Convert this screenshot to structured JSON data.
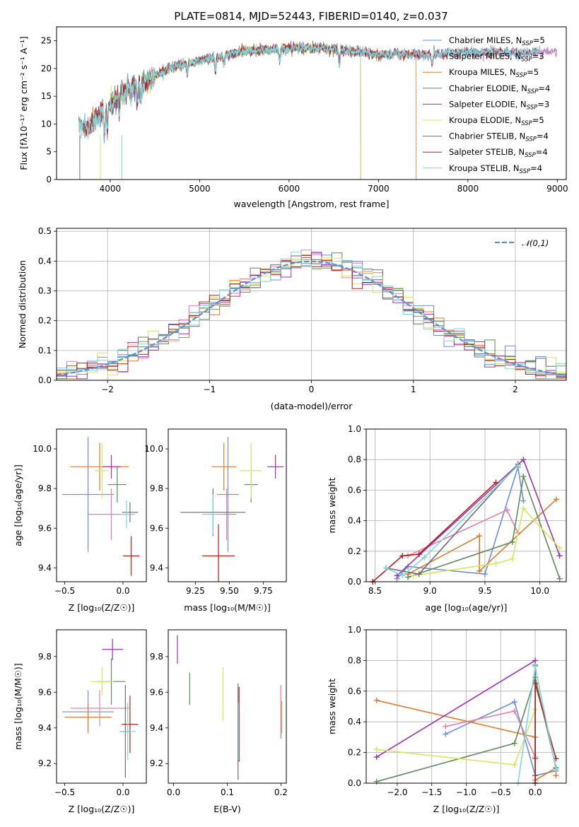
{
  "colors": {
    "chabrier_miles": "#6a8fd8",
    "salpeter_miles": "#e07faf",
    "kroupa_miles": "#d97d2a",
    "chabrier_elodie": "#5e8a5e",
    "salpeter_elodie": "#9b33b0",
    "kroupa_elodie": "#d6e660",
    "chabrier_stelib": "#6e6e6e",
    "salpeter_stelib": "#b81c1c",
    "kroupa_stelib": "#7fd6dc",
    "normal": "#5b8fd6"
  },
  "chart_data": [
    {
      "type": "line",
      "panel": "spectrum",
      "title": "PLATE=0814, MJD=52443, FIBERID=0140, z=0.037",
      "xlabel": "wavelength [Angstrom, rest frame]",
      "ylabel": "Flux [fλ10⁻¹⁷ erg cm⁻² s⁻¹ A⁻¹]",
      "xlim": [
        3400,
        9100
      ],
      "ylim": [
        0,
        27.5
      ],
      "xticks": [
        4000,
        5000,
        6000,
        7000,
        8000,
        9000
      ],
      "yticks": [
        0,
        5,
        10,
        15,
        20,
        25
      ],
      "legend_position": "upper-right",
      "continuum": {
        "x": [
          3650,
          3720,
          3800,
          3900,
          4000,
          4100,
          4200,
          4300,
          4400,
          4500,
          4600,
          4700,
          4800,
          4900,
          5000,
          5200,
          5400,
          5600,
          5800,
          6000,
          6200,
          6400,
          6600,
          6800,
          7000,
          7200,
          7400,
          7600,
          7800,
          8000,
          8200,
          8400,
          8600,
          8800
        ],
        "y": [
          10.5,
          9.5,
          10.0,
          12.0,
          13.5,
          15.0,
          16.5,
          17.0,
          17.5,
          18.5,
          19.5,
          20.3,
          20.8,
          21.0,
          21.5,
          22.0,
          22.8,
          23.2,
          23.4,
          23.6,
          23.7,
          23.6,
          23.2,
          23.0,
          22.5,
          22.7,
          22.5,
          22.5,
          22.8,
          23.0,
          22.9,
          23.0,
          22.8,
          23.0
        ]
      },
      "series": [
        {
          "name": "Chabrier MILES, N_SSP=5",
          "label_prefix": "Chabrier MILES, N",
          "label_sub": "SSP",
          "label_suffix": "=5",
          "color_key": "chabrier_miles",
          "x_range": [
            3650,
            9000
          ]
        },
        {
          "name": "Salpeter MILES, N_SSP=3",
          "label_prefix": "Salpeter MILES, N",
          "label_sub": "SSP",
          "label_suffix": "=3",
          "color_key": "salpeter_miles",
          "x_range": [
            3650,
            9000
          ]
        },
        {
          "name": "Kroupa MILES, N_SSP=5",
          "label_prefix": "Kroupa MILES, N",
          "label_sub": "SSP",
          "label_suffix": "=5",
          "color_key": "kroupa_miles",
          "x_range": [
            3650,
            7420
          ]
        },
        {
          "name": "Chabrier ELODIE, N_SSP=4",
          "label_prefix": "Chabrier ELODIE, N",
          "label_sub": "SSP",
          "label_suffix": "=4",
          "color_key": "chabrier_elodie",
          "x_range": [
            3890,
            6800
          ]
        },
        {
          "name": "Salpeter ELODIE, N_SSP=3",
          "label_prefix": "Salpeter ELODIE, N",
          "label_sub": "SSP",
          "label_suffix": "=3",
          "color_key": "salpeter_elodie",
          "x_range": [
            3890,
            6800
          ]
        },
        {
          "name": "Kroupa ELODIE, N_SSP=5",
          "label_prefix": "Kroupa ELODIE, N",
          "label_sub": "SSP",
          "label_suffix": "=5",
          "color_key": "kroupa_elodie",
          "x_range": [
            3890,
            6800
          ]
        },
        {
          "name": "Chabrier STELIB, N_SSP=4",
          "label_prefix": "Chabrier STELIB, N",
          "label_sub": "SSP",
          "label_suffix": "=4",
          "color_key": "chabrier_stelib",
          "x_range": [
            3650,
            8800
          ]
        },
        {
          "name": "Salpeter STELIB, N_SSP=4",
          "label_prefix": "Salpeter STELIB, N",
          "label_sub": "SSP",
          "label_suffix": "=4",
          "color_key": "salpeter_stelib",
          "x_range": [
            3650,
            8800
          ]
        },
        {
          "name": "Kroupa STELIB, N_SSP=4",
          "label_prefix": "Kroupa STELIB, N",
          "label_sub": "SSP",
          "label_suffix": "=4",
          "color_key": "kroupa_stelib",
          "x_range": [
            3650,
            8800
          ]
        }
      ]
    },
    {
      "type": "bar",
      "panel": "residuals",
      "xlabel": "(data-model)/error",
      "ylabel": "Normed distribution",
      "xlim": [
        -2.5,
        2.5
      ],
      "ylim": [
        0,
        0.51
      ],
      "xticks": [
        -2,
        -1,
        0,
        1,
        2
      ],
      "yticks": [
        0.0,
        0.1,
        0.2,
        0.3,
        0.4,
        0.5
      ],
      "grid": true,
      "bin_width": 0.1,
      "legend": "𝒩(0,1)",
      "legend_position": "upper-right",
      "normal_curve": {
        "mean": 0,
        "sigma": 1
      }
    },
    {
      "type": "scatter",
      "panel": "age-vs-Z",
      "xlabel": "Z [log₁₀(Z/Z☉)]",
      "ylabel": "age  [log₁₀(age/yr)]",
      "xlim": [
        -0.57,
        0.2
      ],
      "ylim": [
        9.33,
        10.1
      ],
      "xticks": [
        -0.5,
        0.0
      ],
      "yticks": [
        9.4,
        9.6,
        9.8,
        10.0
      ],
      "points": [
        {
          "color_key": "chabrier_miles",
          "x": -0.3,
          "xerr": 0.22,
          "y": 9.77,
          "yerr": 0.29
        },
        {
          "color_key": "salpeter_miles",
          "x": -0.1,
          "xerr": 0.2,
          "y": 9.67,
          "yerr": 0.13
        },
        {
          "color_key": "kroupa_miles",
          "x": -0.2,
          "xerr": 0.25,
          "y": 9.91,
          "yerr": 0.12
        },
        {
          "color_key": "chabrier_elodie",
          "x": -0.05,
          "xerr": 0.08,
          "y": 9.82,
          "yerr": 0.09
        },
        {
          "color_key": "salpeter_elodie",
          "x": -0.1,
          "xerr": 0.08,
          "y": 9.91,
          "yerr": 0.06
        },
        {
          "color_key": "kroupa_elodie",
          "x": -0.18,
          "xerr": 0.06,
          "y": 9.89,
          "yerr": 0.14
        },
        {
          "color_key": "chabrier_stelib",
          "x": 0.06,
          "xerr": 0.07,
          "y": 9.68,
          "yerr": 0.05
        },
        {
          "color_key": "salpeter_stelib",
          "x": 0.07,
          "xerr": 0.07,
          "y": 9.46,
          "yerr": 0.1
        },
        {
          "color_key": "kroupa_stelib",
          "x": 0.03,
          "xerr": 0.06,
          "y": 9.67,
          "yerr": 0.07
        }
      ]
    },
    {
      "type": "scatter",
      "panel": "age-vs-mass",
      "xlabel": "mass [log₁₀(M/M☉)]",
      "ylabel": "",
      "xlim": [
        9.05,
        9.92
      ],
      "ylim": [
        9.33,
        10.1
      ],
      "xticks": [
        9.25,
        9.5,
        9.75
      ],
      "yticks": [
        9.4,
        9.6,
        9.8,
        10.0
      ],
      "points": [
        {
          "color_key": "chabrier_miles",
          "x": 9.49,
          "xerr": 0.08,
          "y": 9.77,
          "yerr": 0.29
        },
        {
          "color_key": "salpeter_miles",
          "x": 9.48,
          "xerr": 0.07,
          "y": 9.67,
          "yerr": 0.13
        },
        {
          "color_key": "kroupa_miles",
          "x": 9.46,
          "xerr": 0.09,
          "y": 9.91,
          "yerr": 0.12
        },
        {
          "color_key": "chabrier_elodie",
          "x": 9.66,
          "xerr": 0.05,
          "y": 9.82,
          "yerr": 0.09
        },
        {
          "color_key": "salpeter_elodie",
          "x": 9.84,
          "xerr": 0.06,
          "y": 9.91,
          "yerr": 0.06
        },
        {
          "color_key": "kroupa_elodie",
          "x": 9.66,
          "xerr": 0.08,
          "y": 9.89,
          "yerr": 0.14
        },
        {
          "color_key": "chabrier_stelib",
          "x": 9.38,
          "xerr": 0.24,
          "y": 9.68,
          "yerr": 0.12
        },
        {
          "color_key": "salpeter_stelib",
          "x": 9.42,
          "xerr": 0.12,
          "y": 9.46,
          "yerr": 0.16
        },
        {
          "color_key": "kroupa_stelib",
          "x": 9.38,
          "xerr": 0.08,
          "y": 9.67,
          "yerr": 0.1
        }
      ]
    },
    {
      "type": "line",
      "panel": "mass-weight-vs-age",
      "xlabel": "age  [log₁₀(age/yr)]",
      "ylabel": "mass weight",
      "xlim": [
        8.42,
        10.24
      ],
      "ylim": [
        0,
        1.0
      ],
      "xticks": [
        8.5,
        9.0,
        9.5,
        10.0
      ],
      "yticks": [
        0.0,
        0.2,
        0.4,
        0.6,
        0.8,
        1.0
      ],
      "grid": true,
      "series": [
        {
          "color_key": "chabrier_miles",
          "x": [
            8.7,
            8.8,
            9.5,
            9.8,
            9.85
          ],
          "y": [
            0.02,
            0.1,
            0.05,
            0.75,
            0.53
          ]
        },
        {
          "color_key": "salpeter_miles",
          "x": [
            8.8,
            9.7,
            9.8
          ],
          "y": [
            0.17,
            0.47,
            0.32
          ]
        },
        {
          "color_key": "kroupa_miles",
          "x": [
            8.8,
            9.45,
            9.45,
            10.15
          ],
          "y": [
            0.05,
            0.3,
            0.07,
            0.54
          ]
        },
        {
          "color_key": "chabrier_elodie",
          "x": [
            8.8,
            9.75,
            9.85,
            10.18
          ],
          "y": [
            0.03,
            0.26,
            0.69,
            0.02
          ]
        },
        {
          "color_key": "salpeter_elodie",
          "x": [
            8.7,
            9.85,
            10.18
          ],
          "y": [
            0.04,
            0.8,
            0.17
          ]
        },
        {
          "color_key": "kroupa_elodie",
          "x": [
            8.85,
            9.6,
            9.75,
            9.85,
            10.18
          ],
          "y": [
            0.04,
            0.12,
            0.15,
            0.48,
            0.22
          ]
        },
        {
          "color_key": "chabrier_stelib",
          "x": [
            8.6,
            8.9,
            9.8
          ],
          "y": [
            0.09,
            0.05,
            0.77
          ]
        },
        {
          "color_key": "salpeter_stelib",
          "x": [
            8.48,
            8.75,
            8.9,
            9.6
          ],
          "y": [
            0.0,
            0.17,
            0.18,
            0.65
          ]
        },
        {
          "color_key": "kroupa_stelib",
          "x": [
            8.6,
            8.75,
            8.95,
            9.8
          ],
          "y": [
            0.09,
            0.04,
            0.16,
            0.76
          ]
        }
      ]
    },
    {
      "type": "scatter",
      "panel": "mass-vs-Z",
      "xlabel": "Z [log₁₀(Z/Z☉)]",
      "ylabel": "mass [log₁₀(M/M☉)]",
      "xlim": [
        -0.57,
        0.2
      ],
      "ylim": [
        9.09,
        9.95
      ],
      "xticks": [
        -0.5,
        0.0
      ],
      "yticks": [
        9.2,
        9.4,
        9.6,
        9.8
      ],
      "points": [
        {
          "color_key": "chabrier_miles",
          "x": -0.3,
          "xerr": 0.22,
          "y": 9.49,
          "yerr": 0.12
        },
        {
          "color_key": "salpeter_miles",
          "x": -0.2,
          "xerr": 0.25,
          "y": 9.51,
          "yerr": 0.1
        },
        {
          "color_key": "kroupa_miles",
          "x": -0.3,
          "xerr": 0.2,
          "y": 9.46,
          "yerr": 0.08
        },
        {
          "color_key": "chabrier_elodie",
          "x": -0.1,
          "xerr": 0.12,
          "y": 9.66,
          "yerr": 0.13
        },
        {
          "color_key": "salpeter_elodie",
          "x": -0.09,
          "xerr": 0.09,
          "y": 9.84,
          "yerr": 0.06
        },
        {
          "color_key": "kroupa_elodie",
          "x": -0.18,
          "xerr": 0.1,
          "y": 9.66,
          "yerr": 0.08
        },
        {
          "color_key": "chabrier_stelib",
          "x": 0.02,
          "xerr": 0.04,
          "y": 9.38,
          "yerr": 0.26
        },
        {
          "color_key": "salpeter_stelib",
          "x": 0.06,
          "xerr": 0.07,
          "y": 9.42,
          "yerr": 0.16
        },
        {
          "color_key": "kroupa_stelib",
          "x": 0.04,
          "xerr": 0.07,
          "y": 9.38,
          "yerr": 0.16
        }
      ]
    },
    {
      "type": "scatter",
      "panel": "mass-vs-EBV",
      "xlabel": "E(B-V)",
      "ylabel": "",
      "xlim": [
        -0.01,
        0.21
      ],
      "ylim": [
        9.09,
        9.95
      ],
      "xticks": [
        0.0,
        0.1,
        0.2
      ],
      "yticks": [
        9.2,
        9.4,
        9.6,
        9.8
      ],
      "points": [
        {
          "color_key": "chabrier_miles",
          "x": 0.2,
          "xerr": 0,
          "y": 9.49,
          "yerr": 0.15
        },
        {
          "color_key": "salpeter_miles",
          "x": 0.2,
          "xerr": 0,
          "y": 9.51,
          "yerr": 0.13
        },
        {
          "color_key": "kroupa_miles",
          "x": 0.201,
          "xerr": 0,
          "y": 9.46,
          "yerr": 0.09
        },
        {
          "color_key": "chabrier_elodie",
          "x": 0.03,
          "xerr": 0,
          "y": 9.62,
          "yerr": 0.09
        },
        {
          "color_key": "salpeter_elodie",
          "x": 0.007,
          "xerr": 0,
          "y": 9.84,
          "yerr": 0.08
        },
        {
          "color_key": "kroupa_elodie",
          "x": 0.092,
          "xerr": 0,
          "y": 9.59,
          "yerr": 0.15
        },
        {
          "color_key": "chabrier_stelib",
          "x": 0.12,
          "xerr": 0,
          "y": 9.38,
          "yerr": 0.27
        },
        {
          "color_key": "salpeter_stelib",
          "x": 0.122,
          "xerr": 0,
          "y": 9.42,
          "yerr": 0.21
        },
        {
          "color_key": "kroupa_stelib",
          "x": 0.121,
          "xerr": 0,
          "y": 9.38,
          "yerr": 0.16
        }
      ]
    },
    {
      "type": "line",
      "panel": "mass-weight-vs-Z",
      "xlabel": "Z [log₁₀(Z/Z☉)]",
      "ylabel": "mass weight",
      "xlim": [
        -2.45,
        0.45
      ],
      "ylim": [
        0,
        1.0
      ],
      "xticks": [
        -2.0,
        -1.5,
        -1.0,
        -0.5,
        0.0
      ],
      "yticks": [
        0.0,
        0.2,
        0.4,
        0.6,
        0.8,
        1.0
      ],
      "grid": true,
      "series": [
        {
          "color_key": "chabrier_miles",
          "x": [
            -1.3,
            -0.3,
            0.0,
            0.3
          ],
          "y": [
            0.32,
            0.53,
            0.05,
            0.08
          ]
        },
        {
          "color_key": "salpeter_miles",
          "x": [
            -1.3,
            -0.3,
            0.0
          ],
          "y": [
            0.37,
            0.47,
            0.17
          ]
        },
        {
          "color_key": "kroupa_miles",
          "x": [
            -2.3,
            0.0,
            0.0,
            0.3,
            0.3
          ],
          "y": [
            0.54,
            0.3,
            0.02,
            0.1,
            0.05
          ]
        },
        {
          "color_key": "chabrier_elodie",
          "x": [
            -2.3,
            -0.3,
            0.0,
            0.3
          ],
          "y": [
            0.01,
            0.26,
            0.69,
            0.1
          ]
        },
        {
          "color_key": "salpeter_elodie",
          "x": [
            -2.3,
            0.0
          ],
          "y": [
            0.17,
            0.8
          ]
        },
        {
          "color_key": "kroupa_elodie",
          "x": [
            -2.3,
            -0.3,
            0.0
          ],
          "y": [
            0.22,
            0.12,
            0.48
          ]
        },
        {
          "color_key": "chabrier_stelib",
          "x": [
            0.0,
            0.0,
            0.0
          ],
          "y": [
            0.05,
            0.16,
            0.77
          ]
        },
        {
          "color_key": "salpeter_stelib",
          "x": [
            0.0,
            0.0,
            0.3
          ],
          "y": [
            0.0,
            0.65,
            0.16
          ]
        },
        {
          "color_key": "kroupa_stelib",
          "x": [
            -0.25,
            0.0,
            0.3
          ],
          "y": [
            0.0,
            0.76,
            0.09
          ]
        }
      ]
    }
  ]
}
